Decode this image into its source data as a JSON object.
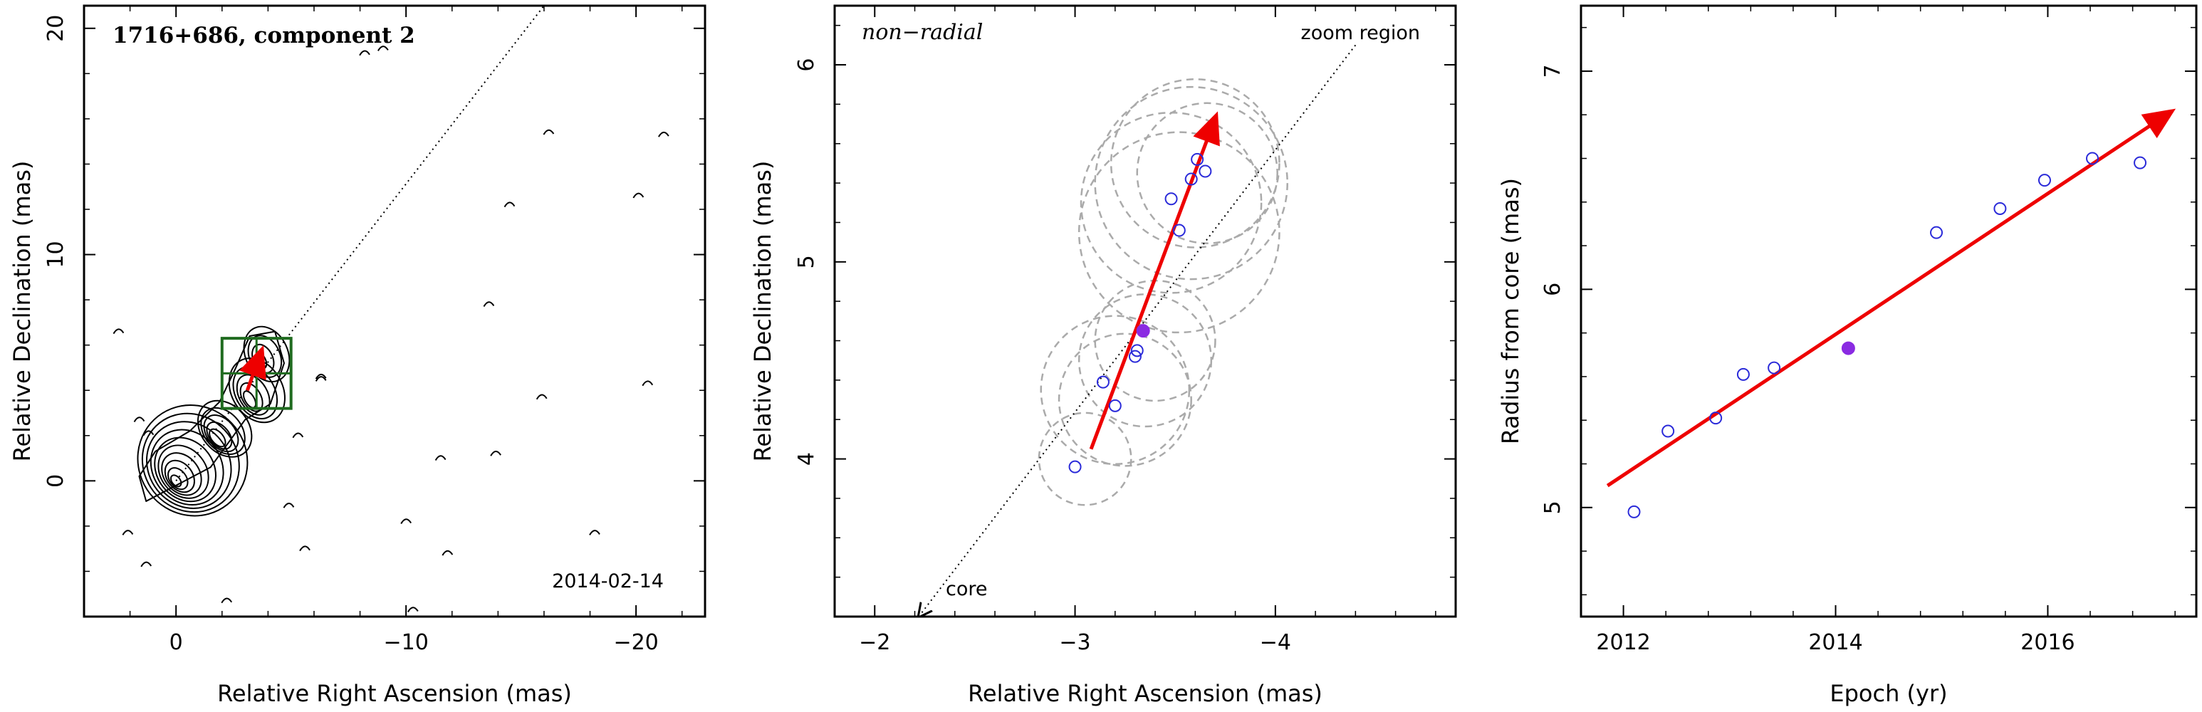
{
  "colors": {
    "arrow": "#ee0000",
    "points": "#2b2bd9",
    "highlight": "#8a2be2",
    "box": "#1f6b1f",
    "circles": "#aaaaaa",
    "contours": "#000000"
  },
  "chart_data": [
    {
      "type": "contour",
      "title": "1716+686, component 2",
      "annotation": "2014-02-14",
      "xlabel": "Relative Right Ascension (mas)",
      "ylabel": "Relative Declination (mas)",
      "xlim": [
        4,
        -23
      ],
      "ylim": [
        -6,
        21
      ],
      "xticks": [
        0,
        -10,
        -20
      ],
      "xtick_labels": [
        "0",
        "−10",
        "−20"
      ],
      "yticks": [
        0,
        10,
        20
      ],
      "ytick_labels": [
        "0",
        "10",
        "20"
      ],
      "reference_line": {
        "from": [
          0,
          0
        ],
        "to": [
          -16,
          21
        ],
        "style": "dotted"
      },
      "zoom_box": {
        "x": [
          -2.0,
          -5.0
        ],
        "y": [
          3.2,
          6.3
        ]
      },
      "motion_vector": {
        "from": [
          -3.1,
          4.0
        ],
        "to": [
          -3.7,
          5.7
        ]
      }
    },
    {
      "type": "scatter",
      "title": "non−radial",
      "labels": {
        "zoom": "zoom region",
        "core": "core"
      },
      "xlabel": "Relative Right Ascension (mas)",
      "ylabel": "Relative Declination (mas)",
      "xlim": [
        -1.8,
        -4.9
      ],
      "ylim": [
        3.2,
        6.3
      ],
      "xticks": [
        -2,
        -3,
        -4
      ],
      "xtick_labels": [
        "−2",
        "−3",
        "−4"
      ],
      "yticks": [
        4,
        5,
        6
      ],
      "ytick_labels": [
        "4",
        "5",
        "6"
      ],
      "points": [
        {
          "x": -3.0,
          "y": 3.96
        },
        {
          "x": -3.14,
          "y": 4.39
        },
        {
          "x": -3.2,
          "y": 4.27
        },
        {
          "x": -3.3,
          "y": 4.52
        },
        {
          "x": -3.31,
          "y": 4.55
        },
        {
          "x": -3.48,
          "y": 5.32
        },
        {
          "x": -3.52,
          "y": 5.16
        },
        {
          "x": -3.58,
          "y": 5.42
        },
        {
          "x": -3.61,
          "y": 5.52
        },
        {
          "x": -3.65,
          "y": 5.46
        }
      ],
      "highlight_point": {
        "x": -3.34,
        "y": 4.65
      },
      "error_circles": [
        {
          "x": -3.05,
          "y": 4.0,
          "r": 0.23
        },
        {
          "x": -3.2,
          "y": 4.35,
          "r": 0.37
        },
        {
          "x": -3.25,
          "y": 4.3,
          "r": 0.33
        },
        {
          "x": -3.35,
          "y": 4.5,
          "r": 0.33
        },
        {
          "x": -3.4,
          "y": 4.6,
          "r": 0.3
        },
        {
          "x": -3.48,
          "y": 5.3,
          "r": 0.45
        },
        {
          "x": -3.52,
          "y": 5.15,
          "r": 0.5
        },
        {
          "x": -3.58,
          "y": 5.4,
          "r": 0.48
        },
        {
          "x": -3.6,
          "y": 5.5,
          "r": 0.42
        },
        {
          "x": -3.66,
          "y": 5.45,
          "r": 0.35
        }
      ],
      "reference_line": {
        "from": [
          -2.22,
          3.2
        ],
        "to": [
          -4.4,
          6.1
        ],
        "style": "dotted"
      },
      "motion_vector": {
        "from": [
          -3.08,
          4.05
        ],
        "to": [
          -3.7,
          5.73
        ]
      }
    },
    {
      "type": "scatter",
      "xlabel": "Epoch (yr)",
      "ylabel": "Radius from core (mas)",
      "xlim": [
        2011.6,
        2017.4
      ],
      "ylim": [
        4.5,
        7.3
      ],
      "xticks": [
        2012,
        2014,
        2016
      ],
      "xtick_labels": [
        "2012",
        "2014",
        "2016"
      ],
      "yticks": [
        5,
        6,
        7
      ],
      "ytick_labels": [
        "5",
        "6",
        "7"
      ],
      "points": [
        {
          "x": 2012.1,
          "y": 4.98
        },
        {
          "x": 2012.42,
          "y": 5.35
        },
        {
          "x": 2012.87,
          "y": 5.41
        },
        {
          "x": 2013.13,
          "y": 5.61
        },
        {
          "x": 2013.42,
          "y": 5.64
        },
        {
          "x": 2014.95,
          "y": 6.26
        },
        {
          "x": 2015.55,
          "y": 6.37
        },
        {
          "x": 2015.97,
          "y": 6.5
        },
        {
          "x": 2016.42,
          "y": 6.6
        },
        {
          "x": 2016.87,
          "y": 6.58
        }
      ],
      "highlight_point": {
        "x": 2014.12,
        "y": 5.73
      },
      "fit_line": {
        "from": [
          2011.85,
          5.1
        ],
        "to": [
          2017.15,
          6.81
        ]
      }
    }
  ]
}
